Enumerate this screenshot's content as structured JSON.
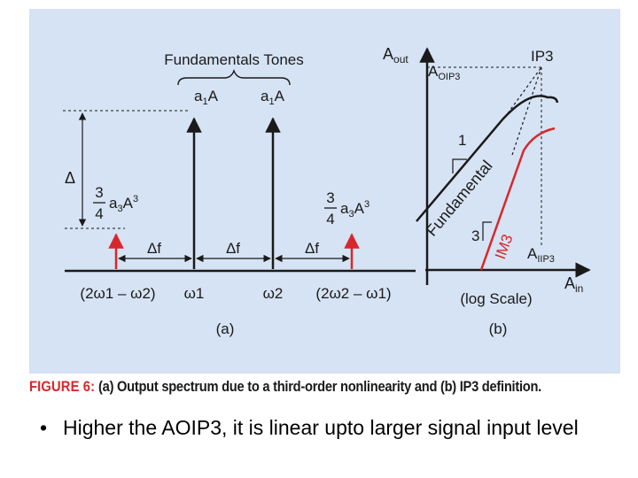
{
  "figure": {
    "panel_a": {
      "group_label": "Fundamentals Tones",
      "tone1_label": {
        "base": "a",
        "sub": "1",
        "suffix": "A"
      },
      "tone2_label": {
        "base": "a",
        "sub": "1",
        "suffix": "A"
      },
      "delta_label": "Δ",
      "im3_left": {
        "num": "3",
        "den": "4",
        "base": "a",
        "sub": "3",
        "var": "A",
        "sup": "3"
      },
      "im3_right": {
        "num": "3",
        "den": "4",
        "base": "a",
        "sub": "3",
        "var": "A",
        "sup": "3"
      },
      "df_labels": [
        "Δf",
        "Δf",
        "Δf"
      ],
      "x_ticks": [
        "(2ω1 – ω2)",
        "ω1",
        "ω2",
        "(2ω2 – ω1)"
      ],
      "panel_label": "(a)"
    },
    "panel_b": {
      "y_axis_label": {
        "base": "A",
        "sub": "out"
      },
      "aoip3_label": {
        "base": "A",
        "sub": "OIP3"
      },
      "ip3_label": "IP3",
      "aiip3_label": {
        "base": "A",
        "sub": "IIP3"
      },
      "x_axis_label": {
        "base": "A",
        "sub": "in"
      },
      "fundamental_label": "Fundamental",
      "im3_label": "IM3",
      "slope_fund": "1",
      "slope_im3": "3",
      "scale_label": "(log Scale)",
      "panel_label": "(b)"
    },
    "colors": {
      "background": "#d6e3f4",
      "im3_red": "#d6282c",
      "line": "#1a1a1a"
    }
  },
  "caption": {
    "label": "FIGURE 6:",
    "text": "(a) Output spectrum due to a third-order nonlinearity and (b) IP3 definition."
  },
  "bullet": {
    "text": "Higher the AOIP3, it is linear upto larger signal input level"
  }
}
